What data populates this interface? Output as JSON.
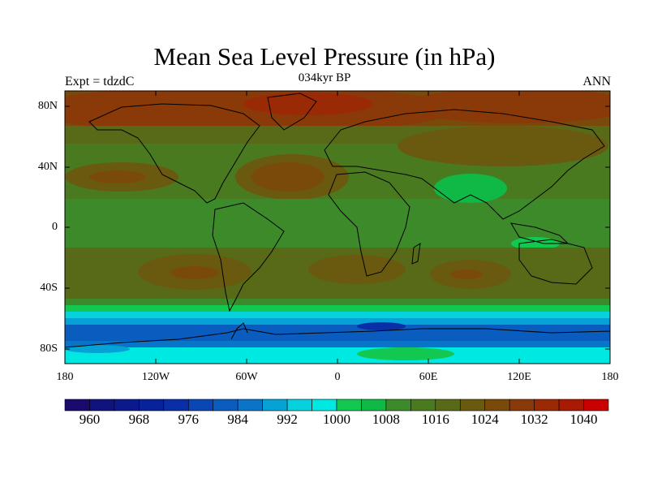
{
  "title": "Mean Sea Level Pressure (in hPa)",
  "subtitle": "034kyr BP",
  "left_label": "Expt = tdzdC",
  "right_label": "ANN",
  "lat_labels": [
    "80N",
    "40N",
    "0",
    "40S",
    "80S"
  ],
  "lon_labels": [
    "180",
    "120W",
    "60W",
    "0",
    "60E",
    "120E",
    "180"
  ],
  "colorbar": {
    "labels": [
      "960",
      "968",
      "976",
      "984",
      "992",
      "1000",
      "1008",
      "1016",
      "1024",
      "1032",
      "1040"
    ],
    "colors": [
      "#1a0a6e",
      "#10127e",
      "#0a1a8c",
      "#08229a",
      "#0a2ea8",
      "#0a46b4",
      "#0a5cbe",
      "#0a74c8",
      "#06a2d6",
      "#05d2dc",
      "#00e8e2",
      "#12c850",
      "#10b846",
      "#3c8a2a",
      "#4a7a20",
      "#586a18",
      "#6a5a10",
      "#7a4a0a",
      "#8a3a08",
      "#9a2a06",
      "#a81a04",
      "#c80000"
    ]
  }
}
